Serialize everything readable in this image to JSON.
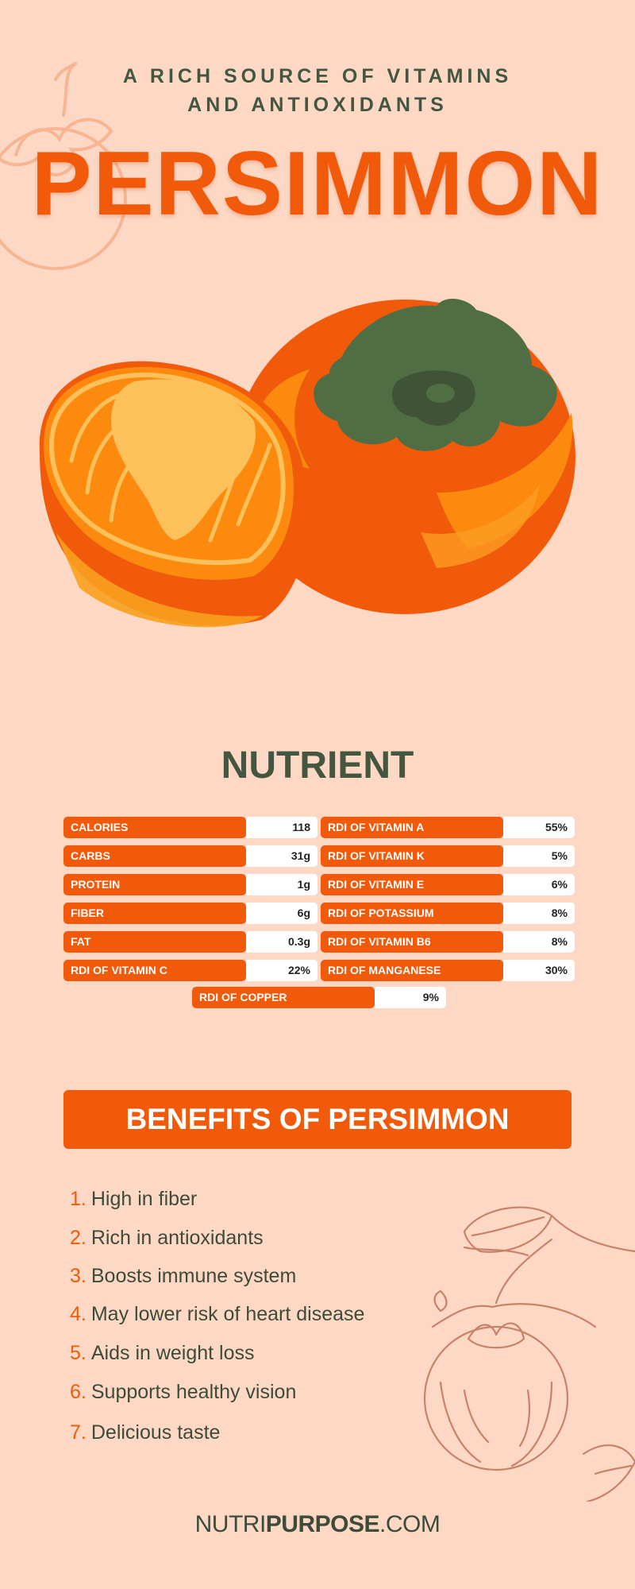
{
  "header": {
    "subtitle_line1": "A RICH SOURCE OF VITAMINS",
    "subtitle_line2": "AND ANTIOXIDANTS",
    "title": "PERSIMMON"
  },
  "nutrient": {
    "heading": "NUTRIENT",
    "left": [
      {
        "label": "CALORIES",
        "value": "118"
      },
      {
        "label": "CARBS",
        "value": "31g"
      },
      {
        "label": "PROTEIN",
        "value": "1g"
      },
      {
        "label": "FIBER",
        "value": "6g"
      },
      {
        "label": "FAT",
        "value": "0.3g"
      },
      {
        "label": "RDI OF VITAMIN C",
        "value": "22%"
      }
    ],
    "right": [
      {
        "label": "RDI OF VITAMIN A",
        "value": "55%"
      },
      {
        "label": "RDI OF VITAMIN K",
        "value": "5%"
      },
      {
        "label": "RDI OF VITAMIN E",
        "value": "6%"
      },
      {
        "label": "RDI OF POTASSIUM",
        "value": "8%"
      },
      {
        "label": "RDI OF VITAMIN B6",
        "value": "8%"
      },
      {
        "label": "RDI OF MANGANESE",
        "value": "30%"
      }
    ],
    "center": {
      "label": "RDI OF COPPER",
      "value": "9%"
    }
  },
  "benefits": {
    "heading": "BENEFITS OF PERSIMMON",
    "items": [
      {
        "num": "1.",
        "text": "High in fiber"
      },
      {
        "num": "2.",
        "text": "Rich in antioxidants"
      },
      {
        "num": "3.",
        "text": "Boosts immune system"
      },
      {
        "num": "4.",
        "text": "May lower risk of heart disease"
      },
      {
        "num": "5.",
        "text": "Aids in weight loss"
      },
      {
        "num": "6.",
        "text": "Supports healthy vision"
      },
      {
        "num": "7.",
        "text": "Delicious taste"
      }
    ]
  },
  "footer": {
    "brand_part1": "NUTRI",
    "brand_part2": "PURPOSE",
    "brand_part3": ".COM"
  },
  "colors": {
    "background": "#fdd9c5",
    "accent": "#f05a0a",
    "dark_green": "#445640"
  },
  "icons": [
    "persimmon-outline-icon",
    "persimmon-illustration",
    "persimmon-branch-sketch"
  ]
}
